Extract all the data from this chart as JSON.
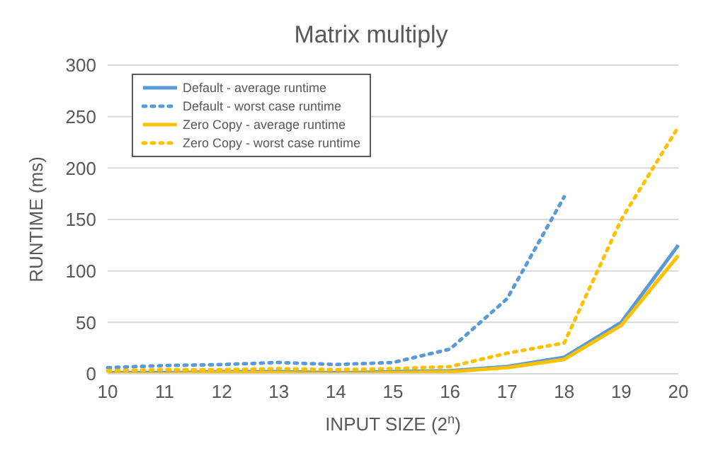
{
  "chart_data": {
    "type": "line",
    "title": "Matrix multiply",
    "xlabel": "INPUT SIZE (2$^{n}$)",
    "ylabel": "RUNTIME (ms)",
    "categories": [
      "10",
      "11",
      "12",
      "13",
      "14",
      "15",
      "16",
      "17",
      "18",
      "19",
      "20"
    ],
    "ylim": [
      0,
      300
    ],
    "yticks": [
      0,
      50,
      100,
      150,
      200,
      250,
      300
    ],
    "grid": "y",
    "legend": "top left",
    "marker": "none",
    "series": [
      {
        "name": "Default - average runtime",
        "color": "#5b9bd5",
        "line_style": "solid",
        "values": [
          1,
          1,
          2,
          2,
          1,
          2,
          3,
          7,
          16,
          50,
          125
        ]
      },
      {
        "name": "Default - worst case runtime",
        "color": "#5b9bd5",
        "line_style": "dotted",
        "values": [
          6,
          8,
          9,
          11,
          9,
          11,
          24,
          73,
          172,
          null,
          null
        ]
      },
      {
        "name": "Zero Copy - average runtime",
        "color": "#ffc000",
        "line_style": "solid",
        "values": [
          0,
          0,
          1,
          1,
          0,
          1,
          2,
          6,
          14,
          47,
          115
        ]
      },
      {
        "name": "Zero Copy - worst case runtime",
        "color": "#ffc000",
        "line_style": "dotted",
        "values": [
          3,
          4,
          4,
          5,
          4,
          5,
          7,
          20,
          30,
          150,
          240
        ]
      }
    ]
  }
}
